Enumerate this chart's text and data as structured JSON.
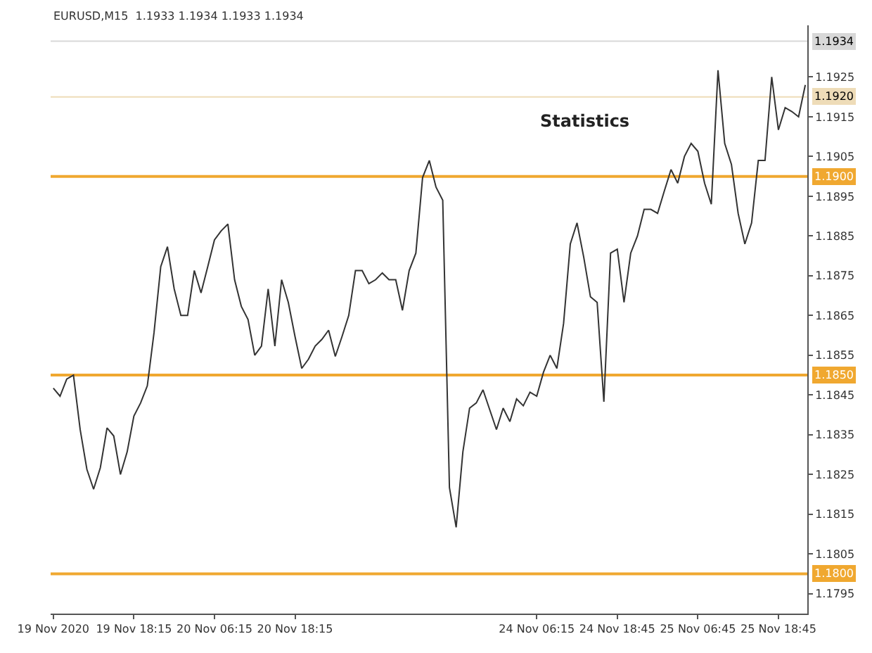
{
  "chart_data": {
    "type": "line",
    "title": "EURUSD,M15  1.1933 1.1934 1.1933 1.1934",
    "categories": [
      "19 Nov 2020",
      null,
      null,
      null,
      null,
      null,
      null,
      null,
      null,
      null,
      null,
      null,
      "19 Nov 18:15",
      null,
      null,
      null,
      null,
      null,
      null,
      null,
      null,
      null,
      null,
      null,
      "20 Nov 06:15",
      null,
      null,
      null,
      null,
      null,
      null,
      null,
      null,
      null,
      null,
      null,
      "20 Nov 18:15",
      null,
      null,
      null,
      null,
      null,
      null,
      null,
      null,
      null,
      null,
      null,
      null,
      null,
      null,
      null,
      null,
      null,
      null,
      null,
      null,
      null,
      null,
      null,
      null,
      null,
      null,
      null,
      null,
      null,
      null,
      null,
      null,
      null,
      null,
      null,
      "24 Nov 06:15",
      null,
      null,
      null,
      null,
      null,
      null,
      null,
      null,
      null,
      null,
      null,
      "24 Nov 18:45",
      null,
      null,
      null,
      null,
      null,
      null,
      null,
      null,
      null,
      null,
      null,
      "25 Nov 06:45",
      null,
      null,
      null,
      null,
      null,
      null,
      null,
      null,
      null,
      null,
      null,
      "25 Nov 18:45",
      null,
      null,
      null,
      null
    ],
    "series": [
      {
        "color": "#333333",
        "values": [
          1.18467,
          1.18447,
          1.1849,
          1.185,
          1.18363,
          1.18263,
          1.18213,
          1.18267,
          1.18367,
          1.18347,
          1.1825,
          1.18307,
          1.18397,
          1.1843,
          1.18473,
          1.18607,
          1.18773,
          1.18823,
          1.18717,
          1.1865,
          1.1865,
          1.18763,
          1.18707,
          1.18773,
          1.1884,
          1.18863,
          1.1888,
          1.1874,
          1.18673,
          1.1864,
          1.1855,
          1.18573,
          1.18717,
          1.18573,
          1.1874,
          1.18683,
          1.18597,
          1.18517,
          1.1854,
          1.18573,
          1.1859,
          1.18613,
          1.18547,
          1.18597,
          1.1865,
          1.18763,
          1.18763,
          1.1873,
          1.1874,
          1.18757,
          1.1874,
          1.1874,
          1.18663,
          1.18763,
          1.18807,
          1.18997,
          1.1904,
          1.18973,
          1.1894,
          1.18217,
          1.18117,
          1.18307,
          1.18417,
          1.1843,
          1.18463,
          1.18413,
          1.18363,
          1.18417,
          1.18383,
          1.1844,
          1.18423,
          1.18457,
          1.18447,
          1.18507,
          1.1855,
          1.18517,
          1.1863,
          1.1883,
          1.18883,
          1.18797,
          1.18697,
          1.18683,
          1.18433,
          1.18807,
          1.18817,
          1.18683,
          1.18807,
          1.1885,
          1.18917,
          1.18917,
          1.18907,
          1.18963,
          1.19017,
          1.18983,
          1.1905,
          1.19083,
          1.19063,
          1.18983,
          1.1893,
          1.19267,
          1.19083,
          1.1903,
          1.18907,
          1.1883,
          1.18883,
          1.1904,
          1.1904,
          1.1925,
          1.19117,
          1.19173,
          1.19163,
          1.1915,
          1.1923
        ]
      }
    ],
    "ylim": [
      1.179,
      1.1938
    ],
    "yticks": [
      1.1795,
      1.1805,
      1.1815,
      1.1825,
      1.1835,
      1.1845,
      1.1855,
      1.1865,
      1.1875,
      1.1885,
      1.1895,
      1.1905,
      1.1915,
      1.1925
    ],
    "ref_lines": [
      {
        "axis": "y",
        "value": 1.1934,
        "label": "1.1934",
        "color": "#d8d8d8"
      },
      {
        "axis": "y",
        "value": 1.192,
        "label": "1.1920",
        "color": "#eedcb8"
      },
      {
        "axis": "y",
        "value": 1.19,
        "label": "1.1900",
        "color": "#f0a830"
      },
      {
        "axis": "y",
        "value": 1.185,
        "label": "1.1850",
        "color": "#f0a830"
      },
      {
        "axis": "y",
        "value": 1.18,
        "label": "1.1800",
        "color": "#f0a830"
      }
    ],
    "annotations": [
      "Statistics"
    ],
    "grid": false
  }
}
